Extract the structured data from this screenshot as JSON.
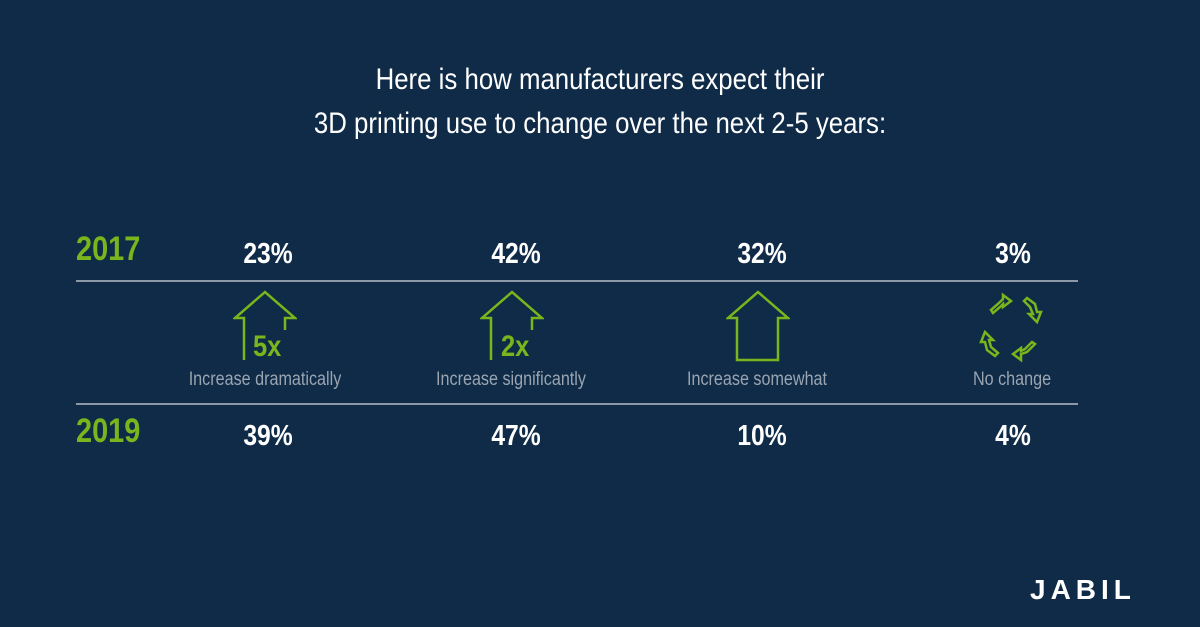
{
  "title_lines": [
    "Here is how manufacturers expect their",
    "3D printing use to change over the next 2-5 years:"
  ],
  "colors": {
    "background": "#0f2b47",
    "accent": "#7ab51d",
    "text": "#ffffff",
    "muted": "#9aa5b1"
  },
  "brand": {
    "logo": "JABIL"
  },
  "chart_data": {
    "type": "table",
    "title": "Here is how manufacturers expect their 3D printing use to change over the next 2-5 years:",
    "categories": [
      "Increase dramatically",
      "Increase significantly",
      "Increase somewhat",
      "No change"
    ],
    "multipliers": [
      "5x",
      "2x",
      "",
      ""
    ],
    "icons": [
      "arrow-up-icon",
      "arrow-up-icon",
      "arrow-up-icon",
      "cycle-arrows-icon"
    ],
    "series": [
      {
        "name": "2017",
        "labels": [
          "23%",
          "42%",
          "32%",
          "3%"
        ],
        "values": [
          23,
          42,
          32,
          3
        ]
      },
      {
        "name": "2019",
        "labels": [
          "39%",
          "47%",
          "10%",
          "4%"
        ],
        "values": [
          39,
          47,
          10,
          4
        ]
      }
    ],
    "unit": "%"
  }
}
